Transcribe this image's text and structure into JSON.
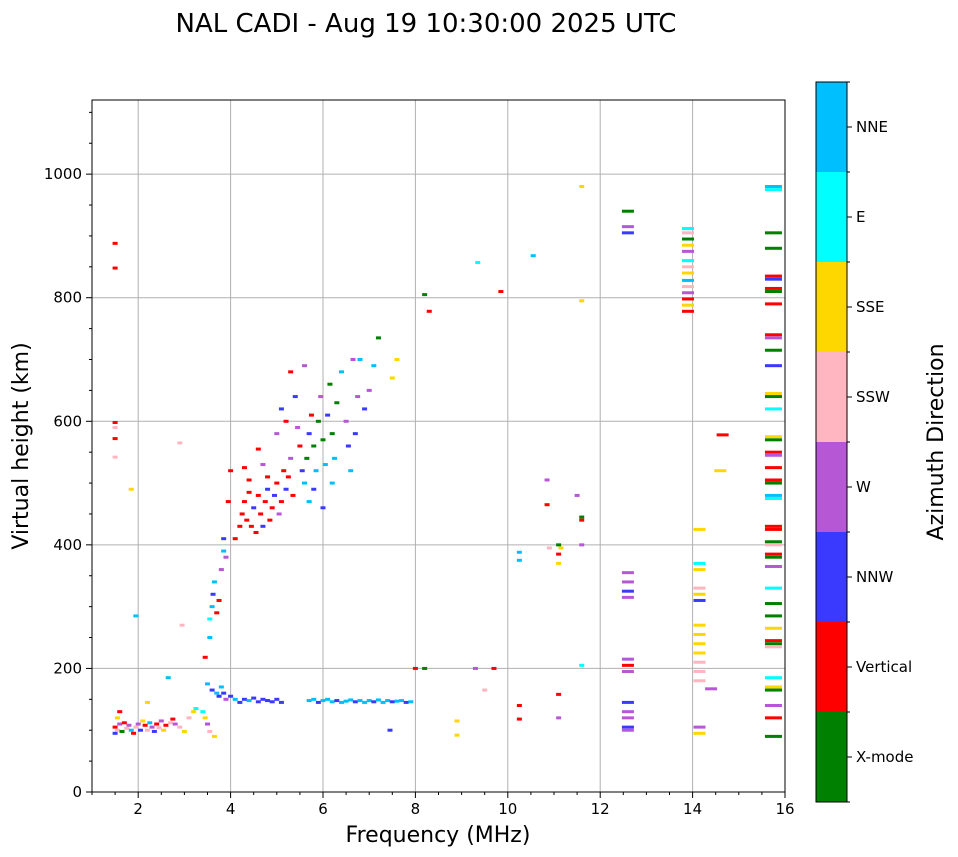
{
  "chart_data": {
    "type": "scatter",
    "title": "NAL CADI - Aug 19 10:30:00 2025 UTC",
    "xlabel": "Frequency (MHz)",
    "ylabel": "Virtual height (km)",
    "xlim": [
      1,
      16
    ],
    "ylim": [
      0,
      1120
    ],
    "xticks": [
      2,
      4,
      6,
      8,
      10,
      12,
      14,
      16
    ],
    "yticks": [
      0,
      200,
      400,
      600,
      800,
      1000
    ],
    "grid": true,
    "colorbar": {
      "label": "Azimuth Direction",
      "categories": [
        {
          "name": "X-mode",
          "color": "#008000"
        },
        {
          "name": "Vertical",
          "color": "#ff0000"
        },
        {
          "name": "NNW",
          "color": "#3a3aff"
        },
        {
          "name": "W",
          "color": "#b658d6"
        },
        {
          "name": "SSW",
          "color": "#ffb6c1"
        },
        {
          "name": "SSE",
          "color": "#ffd700"
        },
        {
          "name": "E",
          "color": "#00ffff"
        },
        {
          "name": "NNE",
          "color": "#00bfff"
        }
      ]
    },
    "points": [
      [
        1.5,
        105,
        1
      ],
      [
        1.55,
        100,
        4
      ],
      [
        1.6,
        110,
        3
      ],
      [
        1.5,
        95,
        2
      ],
      [
        1.65,
        98,
        0
      ],
      [
        1.7,
        112,
        1
      ],
      [
        1.55,
        120,
        5
      ],
      [
        1.6,
        130,
        1
      ],
      [
        1.75,
        103,
        4
      ],
      [
        1.8,
        108,
        3
      ],
      [
        1.85,
        100,
        7
      ],
      [
        1.9,
        95,
        1
      ],
      [
        1.95,
        105,
        4
      ],
      [
        2.0,
        110,
        3
      ],
      [
        2.05,
        100,
        2
      ],
      [
        2.1,
        115,
        5
      ],
      [
        2.15,
        108,
        1
      ],
      [
        2.2,
        100,
        4
      ],
      [
        2.25,
        112,
        7
      ],
      [
        2.3,
        105,
        3
      ],
      [
        2.35,
        98,
        2
      ],
      [
        2.4,
        110,
        1
      ],
      [
        2.45,
        104,
        4
      ],
      [
        2.5,
        115,
        3
      ],
      [
        2.55,
        100,
        5
      ],
      [
        2.6,
        108,
        1
      ],
      [
        2.7,
        112,
        4
      ],
      [
        2.75,
        118,
        1
      ],
      [
        2.8,
        110,
        3
      ],
      [
        2.9,
        105,
        4
      ],
      [
        3.0,
        98,
        5
      ],
      [
        3.1,
        120,
        4
      ],
      [
        3.2,
        130,
        5
      ],
      [
        3.25,
        135,
        6
      ],
      [
        2.2,
        145,
        5
      ],
      [
        2.65,
        185,
        7
      ],
      [
        2.95,
        270,
        4
      ],
      [
        1.95,
        285,
        7
      ],
      [
        2.9,
        565,
        4
      ],
      [
        1.85,
        490,
        5
      ],
      [
        1.5,
        590,
        4
      ],
      [
        1.5,
        598,
        1
      ],
      [
        1.5,
        572,
        1
      ],
      [
        1.5,
        542,
        4
      ],
      [
        1.5,
        888,
        1
      ],
      [
        1.5,
        848,
        1
      ],
      [
        3.4,
        130,
        6
      ],
      [
        3.45,
        120,
        5
      ],
      [
        3.5,
        110,
        3
      ],
      [
        3.55,
        98,
        4
      ],
      [
        3.5,
        175,
        7
      ],
      [
        3.6,
        165,
        2
      ],
      [
        3.7,
        160,
        7
      ],
      [
        3.75,
        155,
        2
      ],
      [
        3.8,
        170,
        7
      ],
      [
        3.85,
        160,
        2
      ],
      [
        3.9,
        150,
        3
      ],
      [
        4.0,
        155,
        2
      ],
      [
        4.1,
        150,
        7
      ],
      [
        4.2,
        145,
        2
      ],
      [
        4.3,
        150,
        2
      ],
      [
        4.4,
        148,
        7
      ],
      [
        4.5,
        152,
        2
      ],
      [
        4.6,
        146,
        2
      ],
      [
        4.7,
        150,
        2
      ],
      [
        4.8,
        148,
        2
      ],
      [
        4.9,
        146,
        2
      ],
      [
        5.0,
        150,
        2
      ],
      [
        5.1,
        145,
        2
      ],
      [
        3.65,
        90,
        5
      ],
      [
        3.45,
        218,
        1
      ],
      [
        3.55,
        250,
        7
      ],
      [
        3.55,
        280,
        6
      ],
      [
        3.6,
        300,
        7
      ],
      [
        3.62,
        320,
        2
      ],
      [
        3.65,
        340,
        7
      ],
      [
        3.7,
        290,
        1
      ],
      [
        3.75,
        310,
        1
      ],
      [
        3.8,
        360,
        3
      ],
      [
        3.85,
        390,
        7
      ],
      [
        3.85,
        410,
        2
      ],
      [
        3.9,
        380,
        3
      ],
      [
        3.95,
        470,
        1
      ],
      [
        4.0,
        520,
        1
      ],
      [
        4.1,
        410,
        1
      ],
      [
        4.2,
        430,
        1
      ],
      [
        4.25,
        450,
        1
      ],
      [
        4.3,
        470,
        1
      ],
      [
        4.35,
        440,
        1
      ],
      [
        4.4,
        485,
        1
      ],
      [
        4.45,
        430,
        1
      ],
      [
        4.5,
        460,
        2
      ],
      [
        4.55,
        420,
        1
      ],
      [
        4.6,
        480,
        1
      ],
      [
        4.65,
        450,
        1
      ],
      [
        4.7,
        430,
        2
      ],
      [
        4.75,
        470,
        1
      ],
      [
        4.8,
        490,
        2
      ],
      [
        4.85,
        440,
        1
      ],
      [
        4.9,
        460,
        1
      ],
      [
        4.95,
        480,
        2
      ],
      [
        5.0,
        500,
        1
      ],
      [
        5.05,
        450,
        3
      ],
      [
        5.1,
        470,
        1
      ],
      [
        5.15,
        520,
        1
      ],
      [
        5.2,
        490,
        2
      ],
      [
        5.25,
        510,
        1
      ],
      [
        5.3,
        540,
        3
      ],
      [
        5.35,
        480,
        1
      ],
      [
        4.3,
        525,
        1
      ],
      [
        4.4,
        505,
        1
      ],
      [
        4.6,
        555,
        1
      ],
      [
        4.7,
        530,
        3
      ],
      [
        4.8,
        510,
        1
      ],
      [
        5.0,
        580,
        3
      ],
      [
        5.1,
        620,
        2
      ],
      [
        5.2,
        600,
        1
      ],
      [
        5.4,
        640,
        2
      ],
      [
        5.45,
        590,
        3
      ],
      [
        5.5,
        560,
        1
      ],
      [
        5.55,
        520,
        2
      ],
      [
        5.6,
        500,
        7
      ],
      [
        5.65,
        540,
        0
      ],
      [
        5.7,
        580,
        2
      ],
      [
        5.75,
        610,
        1
      ],
      [
        5.8,
        560,
        0
      ],
      [
        5.85,
        520,
        7
      ],
      [
        5.9,
        600,
        0
      ],
      [
        5.95,
        640,
        3
      ],
      [
        6.0,
        570,
        0
      ],
      [
        6.05,
        530,
        7
      ],
      [
        6.1,
        610,
        2
      ],
      [
        6.15,
        660,
        0
      ],
      [
        6.2,
        580,
        0
      ],
      [
        6.25,
        540,
        7
      ],
      [
        6.3,
        630,
        0
      ],
      [
        6.4,
        680,
        7
      ],
      [
        6.5,
        600,
        3
      ],
      [
        6.55,
        560,
        2
      ],
      [
        6.6,
        520,
        7
      ],
      [
        6.7,
        580,
        2
      ],
      [
        6.75,
        640,
        3
      ],
      [
        6.8,
        700,
        7
      ],
      [
        6.9,
        620,
        2
      ],
      [
        7.0,
        650,
        3
      ],
      [
        7.1,
        690,
        7
      ],
      [
        7.2,
        735,
        0
      ],
      [
        6.65,
        700,
        3
      ],
      [
        5.6,
        690,
        3
      ],
      [
        5.3,
        680,
        1
      ],
      [
        5.7,
        470,
        7
      ],
      [
        5.8,
        490,
        2
      ],
      [
        6.2,
        500,
        7
      ],
      [
        6.0,
        460,
        2
      ],
      [
        5.7,
        148,
        7
      ],
      [
        5.8,
        150,
        7
      ],
      [
        5.9,
        145,
        2
      ],
      [
        6.0,
        148,
        7
      ],
      [
        6.1,
        150,
        7
      ],
      [
        6.2,
        146,
        7
      ],
      [
        6.3,
        148,
        2
      ],
      [
        6.4,
        145,
        7
      ],
      [
        6.5,
        147,
        7
      ],
      [
        6.6,
        149,
        7
      ],
      [
        6.7,
        146,
        2
      ],
      [
        6.8,
        148,
        7
      ],
      [
        6.9,
        145,
        7
      ],
      [
        7.0,
        148,
        7
      ],
      [
        7.1,
        146,
        2
      ],
      [
        7.2,
        149,
        7
      ],
      [
        7.3,
        145,
        7
      ],
      [
        7.4,
        148,
        7
      ],
      [
        7.5,
        146,
        2
      ],
      [
        7.6,
        147,
        7
      ],
      [
        7.7,
        148,
        7
      ],
      [
        7.8,
        145,
        2
      ],
      [
        7.9,
        146,
        7
      ],
      [
        7.45,
        100,
        2
      ],
      [
        7.5,
        670,
        5
      ],
      [
        7.6,
        700,
        5
      ],
      [
        8.2,
        805,
        0
      ],
      [
        8.3,
        778,
        1
      ],
      [
        8.0,
        200,
        1
      ],
      [
        8.2,
        200,
        0
      ],
      [
        8.9,
        115,
        5
      ],
      [
        8.9,
        92,
        5
      ],
      [
        9.3,
        200,
        3
      ],
      [
        9.5,
        165,
        4
      ],
      [
        9.7,
        200,
        1
      ],
      [
        9.35,
        857,
        6
      ],
      [
        9.85,
        810,
        1
      ],
      [
        10.25,
        118,
        1
      ],
      [
        10.25,
        140,
        1
      ],
      [
        10.25,
        375,
        7
      ],
      [
        10.25,
        388,
        7
      ],
      [
        10.55,
        868,
        7
      ],
      [
        10.85,
        505,
        3
      ],
      [
        10.85,
        465,
        1
      ],
      [
        10.9,
        395,
        4
      ],
      [
        11.1,
        158,
        1
      ],
      [
        11.1,
        120,
        3
      ],
      [
        11.1,
        370,
        5
      ],
      [
        11.1,
        385,
        1
      ],
      [
        11.1,
        400,
        0
      ],
      [
        11.15,
        395,
        5
      ],
      [
        11.5,
        480,
        3
      ],
      [
        11.6,
        440,
        1
      ],
      [
        11.6,
        445,
        0
      ],
      [
        11.6,
        400,
        3
      ],
      [
        11.6,
        205,
        6
      ],
      [
        11.6,
        795,
        5
      ],
      [
        11.6,
        980,
        5
      ]
    ],
    "clusters": [
      {
        "x": 12.6,
        "ys": [
          940,
          915,
          905,
          355,
          340,
          325,
          315,
          215,
          205,
          195,
          145,
          130,
          120,
          105,
          100
        ],
        "c": [
          0,
          3,
          2,
          3,
          3,
          2,
          3,
          3,
          1,
          3,
          2,
          3,
          3,
          2,
          3
        ]
      },
      {
        "x": 13.9,
        "ys": [
          912,
          905,
          895,
          885,
          875,
          860,
          850,
          840,
          828,
          818,
          808,
          798,
          788,
          778
        ],
        "c": [
          6,
          4,
          0,
          5,
          3,
          6,
          4,
          5,
          7,
          4,
          3,
          1,
          5,
          1
        ]
      },
      {
        "x": 14.15,
        "ys": [
          425,
          370,
          360,
          330,
          320,
          310,
          270,
          255,
          240,
          225,
          210,
          195,
          180,
          105,
          95
        ],
        "c": [
          5,
          6,
          5,
          4,
          5,
          2,
          5,
          5,
          5,
          5,
          4,
          4,
          4,
          3,
          5
        ]
      },
      {
        "x": 15.75,
        "ys": [
          980,
          975,
          905,
          880,
          835,
          830,
          815,
          810,
          790,
          740,
          735,
          715,
          690,
          645,
          640,
          620,
          575,
          570,
          550,
          545,
          525,
          505,
          500,
          480,
          475,
          430,
          425,
          405,
          400,
          385,
          380,
          365,
          330,
          305,
          285,
          265,
          245,
          240,
          235,
          185,
          170,
          165,
          140,
          120,
          90
        ],
        "c": [
          7,
          6,
          0,
          0,
          1,
          2,
          1,
          0,
          1,
          1,
          3,
          0,
          2,
          5,
          0,
          6,
          5,
          0,
          1,
          3,
          1,
          1,
          0,
          7,
          6,
          1,
          1,
          0,
          4,
          1,
          0,
          3,
          6,
          0,
          0,
          5,
          1,
          0,
          4,
          6,
          5,
          0,
          3,
          1,
          0
        ]
      }
    ],
    "lines": [
      [
        14.4,
        167,
        3
      ],
      [
        14.6,
        520,
        5
      ],
      [
        14.65,
        578,
        1
      ]
    ]
  }
}
